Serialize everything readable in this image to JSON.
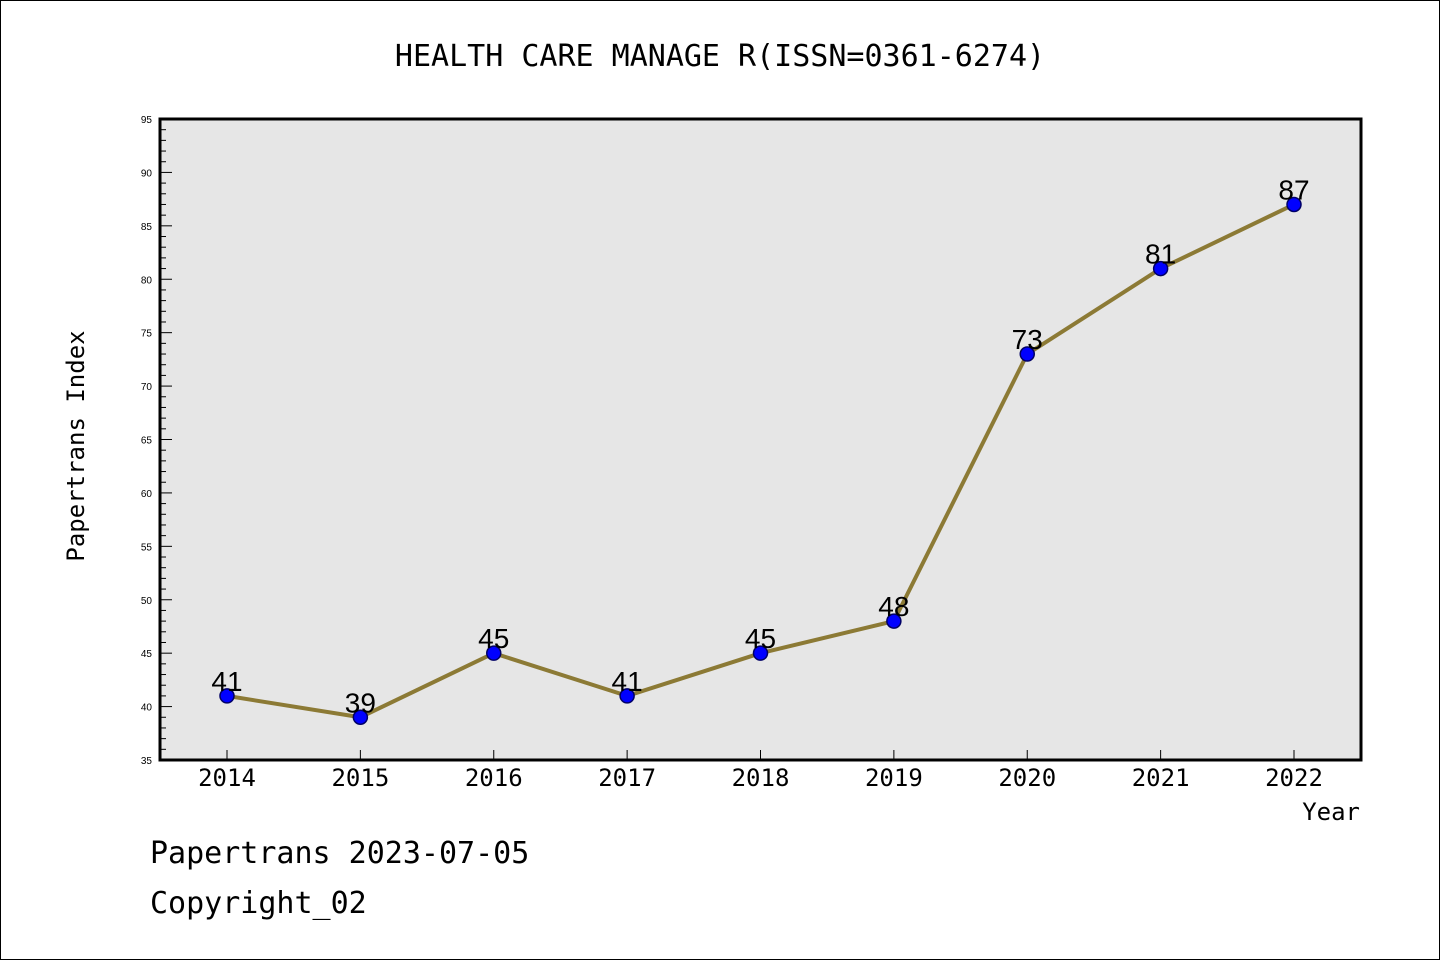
{
  "chart_data": {
    "type": "line",
    "title": "HEALTH CARE MANAGE R(ISSN=0361-6274)",
    "xlabel": "Year",
    "ylabel": "Papertrans Index",
    "categories": [
      "2014",
      "2015",
      "2016",
      "2017",
      "2018",
      "2019",
      "2020",
      "2021",
      "2022"
    ],
    "series": [
      {
        "values": [
          41,
          39,
          45,
          41,
          45,
          48,
          73,
          81,
          87
        ]
      }
    ],
    "data_labels": [
      "41",
      "39",
      "45",
      "41",
      "45",
      "48",
      "73",
      "81",
      "87"
    ],
    "ylim": [
      35,
      95
    ],
    "yticks": [
      35,
      40,
      45,
      50,
      55,
      60,
      65,
      70,
      75,
      80,
      85,
      90,
      95
    ],
    "ytick_labels": [
      "35",
      "40",
      "45",
      "50",
      "55",
      "60",
      "65",
      "70",
      "75",
      "80",
      "85",
      "90",
      "95"
    ],
    "y_minor_step": 1,
    "grid": false,
    "legend": "none",
    "colors": {
      "plot_background": "#e6e6e6",
      "line": "#8c7a35",
      "marker_fill": "#0000ff",
      "marker_stroke": "#000066"
    }
  },
  "footer": {
    "line1": "Papertrans 2023-07-05",
    "line2": "Copyright_02"
  }
}
